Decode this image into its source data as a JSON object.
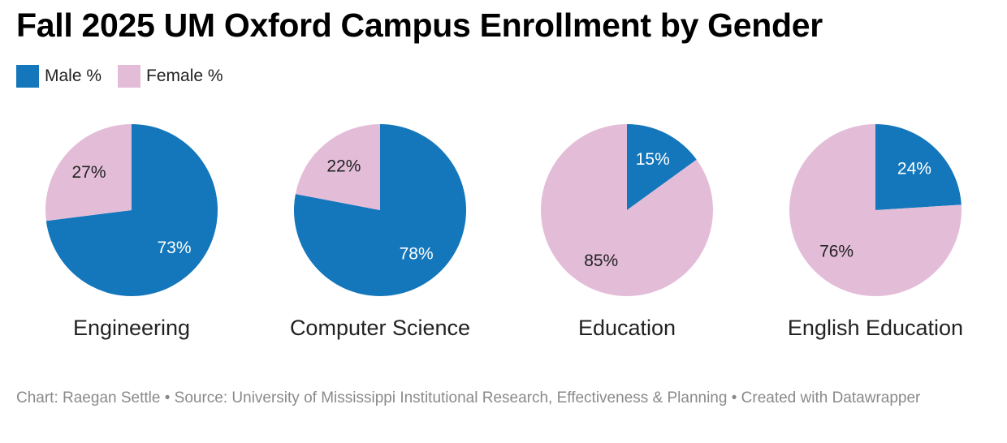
{
  "title": "Fall 2025 UM Oxford Campus Enrollment by Gender",
  "legend": {
    "male_label": "Male %",
    "female_label": "Female %"
  },
  "colors": {
    "male": "#1477bb",
    "female": "#e3bdd8",
    "male_label_text": "#ffffff",
    "female_label_text": "#222222"
  },
  "chart_data": [
    {
      "type": "pie",
      "title": "Engineering",
      "series": [
        {
          "name": "Male %",
          "value": 73,
          "label": "73%"
        },
        {
          "name": "Female %",
          "value": 27,
          "label": "27%"
        }
      ]
    },
    {
      "type": "pie",
      "title": "Computer Science",
      "series": [
        {
          "name": "Male %",
          "value": 78,
          "label": "78%"
        },
        {
          "name": "Female %",
          "value": 22,
          "label": "22%"
        }
      ]
    },
    {
      "type": "pie",
      "title": "Education",
      "series": [
        {
          "name": "Male %",
          "value": 15,
          "label": "15%"
        },
        {
          "name": "Female %",
          "value": 85,
          "label": "85%"
        }
      ]
    },
    {
      "type": "pie",
      "title": "English Education",
      "series": [
        {
          "name": "Male %",
          "value": 24,
          "label": "24%"
        },
        {
          "name": "Female %",
          "value": 76,
          "label": "76%"
        }
      ]
    }
  ],
  "footer": "Chart: Raegan Settle • Source: University of Mississippi Institutional Research, Effectiveness & Planning • Created with Datawrapper"
}
